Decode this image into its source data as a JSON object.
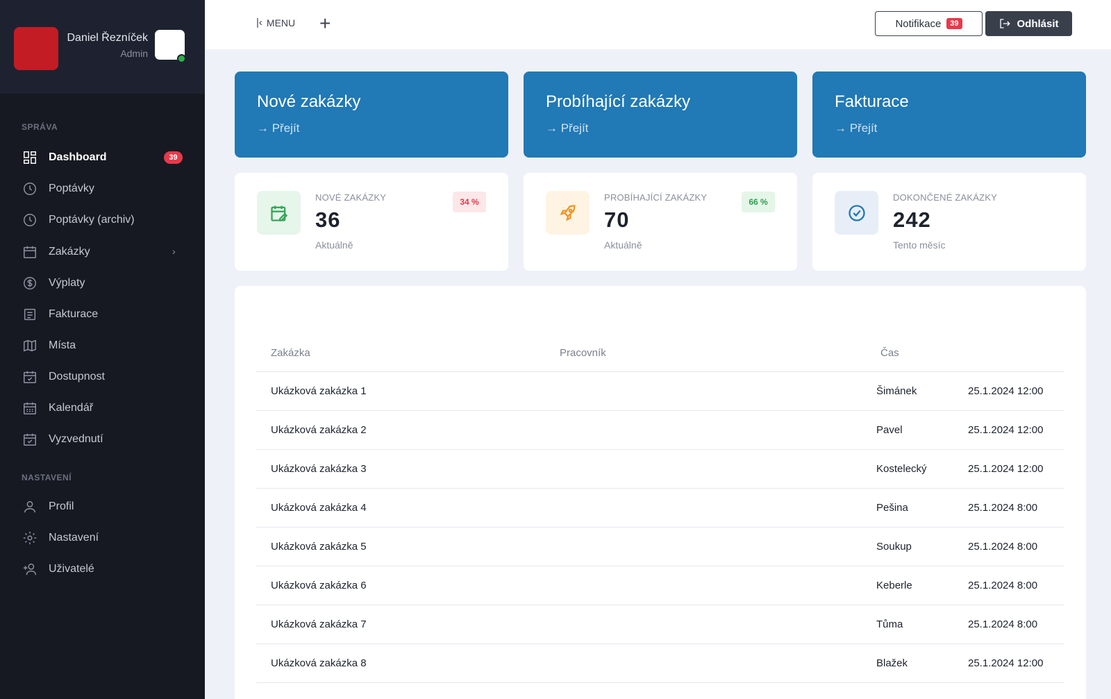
{
  "user": {
    "name": "Daniel Řezníček",
    "role": "Admin"
  },
  "sidebar": {
    "section_manage": "SPRÁVA",
    "section_settings": "NASTAVENÍ",
    "items": [
      {
        "label": "Dashboard",
        "icon": "dashboard-icon",
        "badge": "39"
      },
      {
        "label": "Poptávky",
        "icon": "clock-icon"
      },
      {
        "label": "Poptávky (archiv)",
        "icon": "clock-icon"
      },
      {
        "label": "Zakázky",
        "icon": "calendar-icon"
      },
      {
        "label": "Výplaty",
        "icon": "dollar-icon"
      },
      {
        "label": "Fakturace",
        "icon": "document-icon"
      },
      {
        "label": "Místa",
        "icon": "map-icon"
      },
      {
        "label": "Dostupnost",
        "icon": "calendar-check-icon"
      },
      {
        "label": "Kalendář",
        "icon": "calendar-grid-icon"
      },
      {
        "label": "Vyzvednutí",
        "icon": "calendar-check-icon"
      },
      {
        "label": "Profil",
        "icon": "user-icon"
      },
      {
        "label": "Nastavení",
        "icon": "gear-icon"
      },
      {
        "label": "Uživatelé",
        "icon": "user-add-icon"
      }
    ]
  },
  "topbar": {
    "menu_label": "MENU",
    "plus": "+",
    "notifications_label": "Notifikace",
    "notifications_count": "39",
    "logout_label": "Odhlásit"
  },
  "quick_links": [
    {
      "title": "Nové zakázky",
      "link": "→ Přejít"
    },
    {
      "title": "Probíhající zakázky",
      "link": "→ Přejít"
    },
    {
      "title": "Fakturace",
      "link": "→ Přejít"
    }
  ],
  "stats": [
    {
      "label": "NOVÉ ZAKÁZKY",
      "value": "36",
      "sub": "Aktuálně",
      "pct": "34 %",
      "icon": "calendar-edit-icon"
    },
    {
      "label": "PROBÍHAJÍCÍ ZAKÁZKY",
      "value": "70",
      "sub": "Aktuálně",
      "pct": "66 %",
      "icon": "rocket-icon"
    },
    {
      "label": "DOKONČENÉ ZAKÁZKY",
      "value": "242",
      "sub": "Tento měsíc",
      "icon": "check-circle-icon"
    }
  ],
  "table": {
    "headers": [
      "Zakázka",
      "Pracovník",
      "Čas"
    ],
    "rows": [
      [
        "Ukázková zakázka 1",
        "Šimánek",
        "25.1.2024 12:00"
      ],
      [
        "Ukázková zakázka 2",
        "Pavel",
        "25.1.2024 12:00"
      ],
      [
        "Ukázková zakázka 3",
        "Kostelecký",
        "25.1.2024 12:00"
      ],
      [
        "Ukázková zakázka 4",
        "Pešina",
        "25.1.2024 8:00"
      ],
      [
        "Ukázková zakázka 5",
        "Soukup",
        "25.1.2024 8:00"
      ],
      [
        "Ukázková zakázka 6",
        "Keberle",
        "25.1.2024 8:00"
      ],
      [
        "Ukázková zakázka 7",
        "Tůma",
        "25.1.2024 8:00"
      ],
      [
        "Ukázková zakázka 8",
        "Blažek",
        "25.1.2024 12:00"
      ]
    ]
  },
  "colors": {
    "sidebar_bg": "#161922",
    "accent_blue": "#2179b5",
    "badge_red": "#e8394a",
    "online_green": "#2bb04a"
  }
}
